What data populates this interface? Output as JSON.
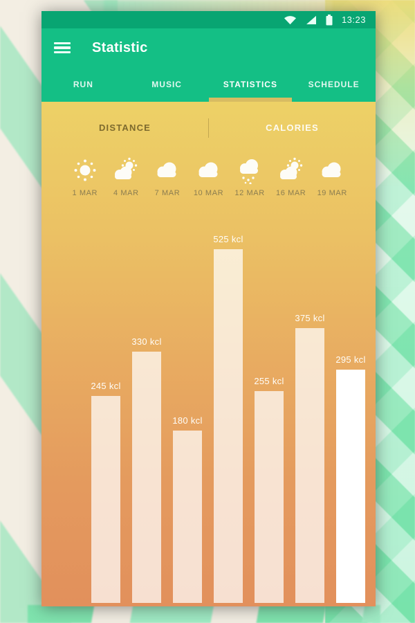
{
  "status_bar": {
    "time": "13:23",
    "icons": [
      "wifi-icon",
      "signal-icon",
      "battery-icon"
    ]
  },
  "app_bar": {
    "title": "Statistic",
    "menu_icon": "hamburger-menu-icon"
  },
  "tabs": {
    "items": [
      {
        "label": "RUN",
        "active": false
      },
      {
        "label": "MUSIC",
        "active": false
      },
      {
        "label": "STATISTICS",
        "active": true
      },
      {
        "label": "SCHEDULE",
        "active": false
      }
    ],
    "active_index": 2,
    "indicator_color": "#d8bc62"
  },
  "sub_tabs": {
    "left": {
      "label": "DISTANCE",
      "selected": true
    },
    "right": {
      "label": "CALORIES",
      "selected": false
    }
  },
  "weather": {
    "days": [
      {
        "date": "1 MAR",
        "icon": "sun"
      },
      {
        "date": "4 MAR",
        "icon": "sun-cloud"
      },
      {
        "date": "7 MAR",
        "icon": "cloud"
      },
      {
        "date": "10 MAR",
        "icon": "cloud"
      },
      {
        "date": "12 MAR",
        "icon": "rain-cloud"
      },
      {
        "date": "16 MAR",
        "icon": "sun-cloud"
      },
      {
        "date": "19 MAR",
        "icon": "cloud"
      }
    ]
  },
  "chart_data": {
    "type": "bar",
    "categories": [
      "1 MAR",
      "4 MAR",
      "7 MAR",
      "10 MAR",
      "12 MAR",
      "16 MAR",
      "19 MAR"
    ],
    "values": [
      245,
      330,
      180,
      525,
      255,
      375,
      295
    ],
    "unit": "kcl",
    "data_labels": [
      "245 kcl",
      "330 kcl",
      "180 kcl",
      "525 kcl",
      "255 kcl",
      "375 kcl",
      "295 kcl"
    ],
    "highlight_index": 6,
    "title": "",
    "xlabel": "",
    "ylabel": "",
    "ylim": [
      0,
      560
    ],
    "grid": false,
    "legend": "none",
    "bar_color": "rgba(255,255,255,0.72)",
    "highlight_bar_color": "#ffffff"
  },
  "colors": {
    "status_bar_green": "#08a572",
    "app_bar_green": "#14bf85",
    "panel_gradient_top": "#edd166",
    "panel_gradient_bottom": "#e2905c",
    "tab_indicator": "#d8bc62",
    "subtab_selected_text": "#7d6a2e",
    "date_text": "#8c7d50",
    "background_mint": "#8fe5b9"
  }
}
